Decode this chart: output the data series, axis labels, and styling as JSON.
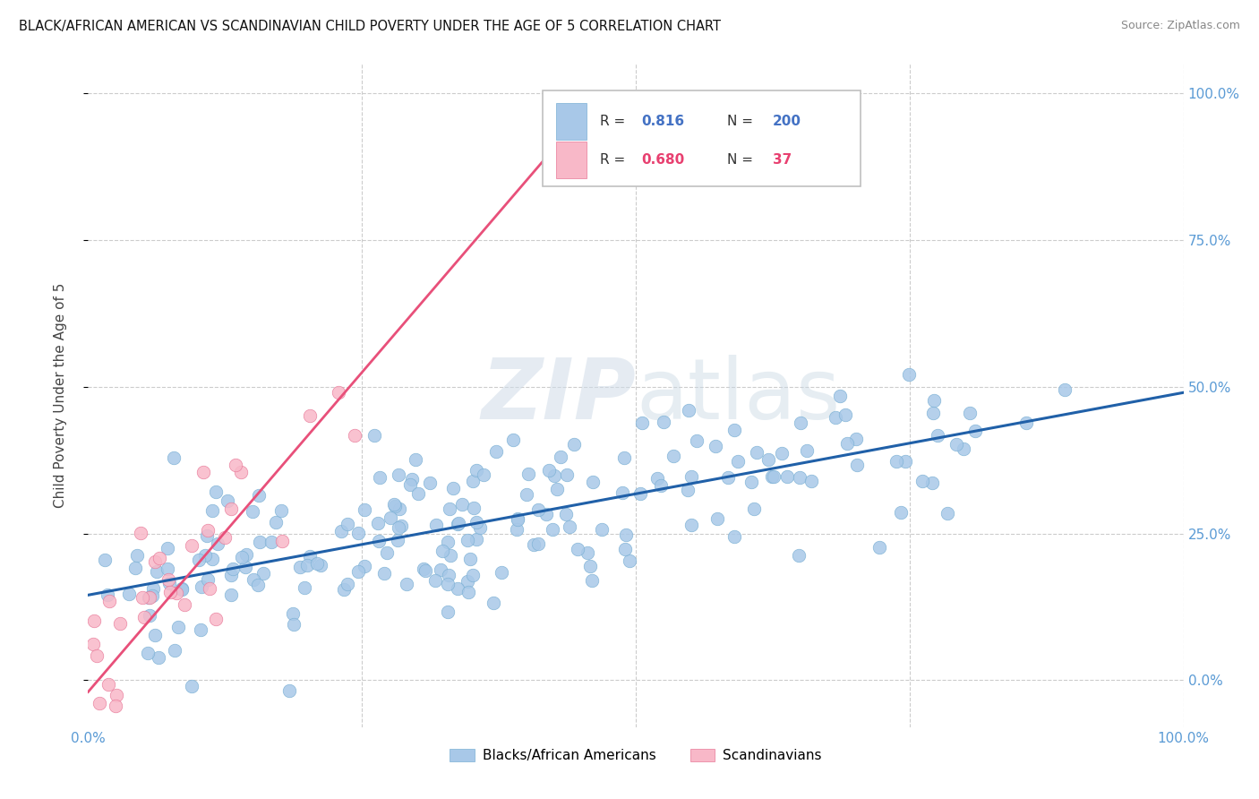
{
  "title": "BLACK/AFRICAN AMERICAN VS SCANDINAVIAN CHILD POVERTY UNDER THE AGE OF 5 CORRELATION CHART",
  "source": "Source: ZipAtlas.com",
  "ylabel": "Child Poverty Under the Age of 5",
  "xlim": [
    0,
    1
  ],
  "ylim": [
    -0.08,
    1.05
  ],
  "blue_R": 0.816,
  "blue_N": 200,
  "pink_R": 0.68,
  "pink_N": 37,
  "blue_color": "#a8c8e8",
  "blue_edge": "#7ab0d4",
  "pink_color": "#f8b8c8",
  "pink_edge": "#e87898",
  "trend_blue": "#2060a8",
  "trend_pink": "#e8507a",
  "watermark_color": "#d8e4f0",
  "legend_label_blue": "Blacks/African Americans",
  "legend_label_pink": "Scandinavians",
  "background_color": "#ffffff",
  "grid_color": "#cccccc",
  "ytick_pcts": [
    0.0,
    0.25,
    0.5,
    0.75,
    1.0
  ],
  "ytick_labels_right": [
    "0.0%",
    "25.0%",
    "50.0%",
    "75.0%",
    "100.0%"
  ],
  "blue_trend_x": [
    0.0,
    1.0
  ],
  "blue_trend_y": [
    0.145,
    0.49
  ],
  "pink_trend_x": [
    0.0,
    0.45
  ],
  "pink_trend_y": [
    -0.02,
    0.96
  ]
}
